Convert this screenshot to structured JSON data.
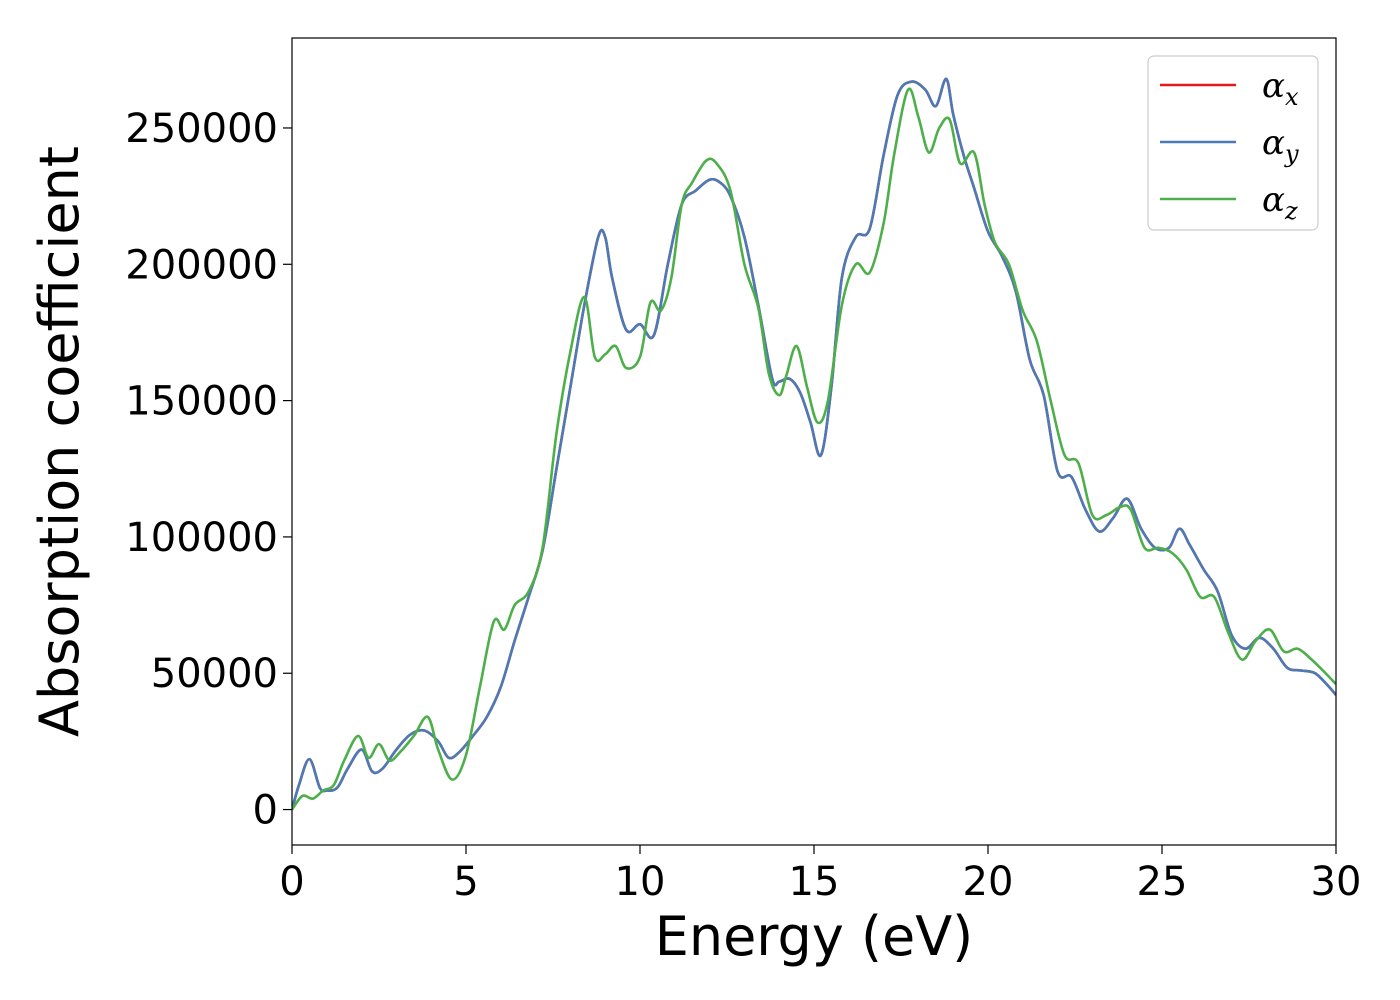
{
  "chart_data": {
    "type": "line",
    "title": "",
    "xlabel": "Energy (eV)",
    "ylabel": "Absorption coefficient",
    "xlim": [
      0,
      30
    ],
    "ylim": [
      -13000,
      283000
    ],
    "xticks": [
      "0",
      "5",
      "10",
      "15",
      "20",
      "25",
      "30"
    ],
    "xtick_values": [
      0,
      5,
      10,
      15,
      20,
      25,
      30
    ],
    "yticks": [
      "0",
      "50000",
      "100000",
      "150000",
      "200000",
      "250000"
    ],
    "ytick_values": [
      0,
      50000,
      100000,
      150000,
      200000,
      250000
    ],
    "grid": false,
    "legend_position": "top-right",
    "series": [
      {
        "name": "αx",
        "legend_base": "α",
        "legend_sub": "x",
        "color": "#e41a1c",
        "x": [
          0,
          0.2,
          0.5,
          0.8,
          1.0,
          1.3,
          1.6,
          2.0,
          2.3,
          2.6,
          3.0,
          3.4,
          3.8,
          4.2,
          4.5,
          4.8,
          5.2,
          5.6,
          6.0,
          6.4,
          6.8,
          7.2,
          7.6,
          8.0,
          8.4,
          8.8,
          9.0,
          9.2,
          9.6,
          10.0,
          10.4,
          10.8,
          11.2,
          11.6,
          12.0,
          12.3,
          12.6,
          13.0,
          13.4,
          13.8,
          14.0,
          14.3,
          14.6,
          14.9,
          15.2,
          15.5,
          15.8,
          16.2,
          16.6,
          17.0,
          17.4,
          17.8,
          18.2,
          18.5,
          18.8,
          19.0,
          19.3,
          19.6,
          20.0,
          20.4,
          20.8,
          21.2,
          21.6,
          22.0,
          22.4,
          22.8,
          23.2,
          23.6,
          24.0,
          24.4,
          24.8,
          25.2,
          25.5,
          25.8,
          26.2,
          26.6,
          27.0,
          27.4,
          27.8,
          28.2,
          28.6,
          29.0,
          29.4,
          29.8,
          30.0
        ],
        "values": [
          0,
          9000,
          18500,
          8000,
          7000,
          8000,
          15000,
          22000,
          14000,
          15000,
          22000,
          27500,
          29000,
          25000,
          19000,
          21000,
          27000,
          34000,
          45000,
          62000,
          78000,
          95000,
          125000,
          155000,
          185000,
          210000,
          210000,
          195000,
          176000,
          178000,
          174000,
          200000,
          222000,
          227000,
          231000,
          230000,
          225000,
          210000,
          185000,
          158000,
          157000,
          158000,
          153000,
          142000,
          130000,
          155000,
          195000,
          210000,
          213000,
          240000,
          262000,
          267000,
          264000,
          258000,
          268000,
          255000,
          240000,
          228000,
          212000,
          203000,
          190000,
          165000,
          152000,
          124000,
          122000,
          110000,
          102000,
          107000,
          114000,
          103000,
          96000,
          96000,
          103000,
          97000,
          88000,
          80000,
          64000,
          59000,
          63000,
          59000,
          52000,
          51000,
          50000,
          45000,
          42000
        ]
      },
      {
        "name": "αy",
        "legend_base": "α",
        "legend_sub": "y",
        "color": "#4a7bb7",
        "x": [
          0,
          0.2,
          0.5,
          0.8,
          1.0,
          1.3,
          1.6,
          2.0,
          2.3,
          2.6,
          3.0,
          3.4,
          3.8,
          4.2,
          4.5,
          4.8,
          5.2,
          5.6,
          6.0,
          6.4,
          6.8,
          7.2,
          7.6,
          8.0,
          8.4,
          8.8,
          9.0,
          9.2,
          9.6,
          10.0,
          10.4,
          10.8,
          11.2,
          11.6,
          12.0,
          12.3,
          12.6,
          13.0,
          13.4,
          13.8,
          14.0,
          14.3,
          14.6,
          14.9,
          15.2,
          15.5,
          15.8,
          16.2,
          16.6,
          17.0,
          17.4,
          17.8,
          18.2,
          18.5,
          18.8,
          19.0,
          19.3,
          19.6,
          20.0,
          20.4,
          20.8,
          21.2,
          21.6,
          22.0,
          22.4,
          22.8,
          23.2,
          23.6,
          24.0,
          24.4,
          24.8,
          25.2,
          25.5,
          25.8,
          26.2,
          26.6,
          27.0,
          27.4,
          27.8,
          28.2,
          28.6,
          29.0,
          29.4,
          29.8,
          30.0
        ],
        "values": [
          0,
          9000,
          18500,
          8000,
          7000,
          8000,
          15000,
          22000,
          14000,
          15000,
          22000,
          27500,
          29000,
          25000,
          19000,
          21000,
          27000,
          34000,
          45000,
          62000,
          78000,
          95000,
          125000,
          155000,
          185000,
          210000,
          210000,
          195000,
          176000,
          178000,
          174000,
          200000,
          222000,
          227000,
          231000,
          230000,
          225000,
          210000,
          185000,
          158000,
          157000,
          158000,
          153000,
          142000,
          130000,
          155000,
          195000,
          210000,
          213000,
          240000,
          262000,
          267000,
          264000,
          258000,
          268000,
          255000,
          240000,
          228000,
          212000,
          203000,
          190000,
          165000,
          152000,
          124000,
          122000,
          110000,
          102000,
          107000,
          114000,
          103000,
          96000,
          96000,
          103000,
          97000,
          88000,
          80000,
          64000,
          59000,
          63000,
          59000,
          52000,
          51000,
          50000,
          45000,
          42000
        ]
      },
      {
        "name": "αz",
        "legend_base": "α",
        "legend_sub": "z",
        "color": "#4daf4a",
        "x": [
          0,
          0.3,
          0.6,
          0.9,
          1.2,
          1.5,
          1.9,
          2.2,
          2.5,
          2.8,
          3.1,
          3.5,
          3.9,
          4.2,
          4.6,
          5.0,
          5.4,
          5.8,
          6.1,
          6.4,
          6.8,
          7.2,
          7.6,
          8.0,
          8.4,
          8.7,
          9.0,
          9.3,
          9.6,
          10.0,
          10.3,
          10.6,
          10.9,
          11.2,
          11.5,
          11.9,
          12.2,
          12.6,
          13.0,
          13.4,
          13.7,
          14.0,
          14.2,
          14.5,
          14.8,
          15.1,
          15.4,
          15.8,
          16.2,
          16.6,
          17.0,
          17.3,
          17.7,
          18.0,
          18.3,
          18.6,
          18.9,
          19.2,
          19.6,
          19.9,
          20.2,
          20.6,
          21.0,
          21.4,
          21.8,
          22.2,
          22.6,
          23.0,
          23.4,
          23.8,
          24.1,
          24.5,
          24.9,
          25.3,
          25.7,
          26.1,
          26.5,
          26.9,
          27.3,
          27.7,
          28.1,
          28.5,
          28.9,
          29.3,
          29.7,
          30.0
        ],
        "values": [
          0,
          5000,
          4000,
          7000,
          9000,
          18000,
          27000,
          19000,
          24000,
          18000,
          21000,
          27000,
          34000,
          22000,
          11000,
          20000,
          45000,
          69000,
          66000,
          75000,
          80000,
          96000,
          138000,
          168000,
          188000,
          166000,
          167000,
          170000,
          162000,
          166000,
          186000,
          183000,
          195000,
          222000,
          230000,
          238000,
          237000,
          227000,
          200000,
          184000,
          160000,
          152000,
          159000,
          170000,
          155000,
          142000,
          150000,
          185000,
          200000,
          197000,
          215000,
          240000,
          264000,
          254000,
          241000,
          250000,
          253000,
          237000,
          241000,
          222000,
          208000,
          200000,
          183000,
          172000,
          150000,
          130000,
          127000,
          108000,
          108000,
          111000,
          110000,
          96000,
          96000,
          94000,
          88000,
          78000,
          78000,
          65000,
          55000,
          62000,
          66000,
          58000,
          59000,
          55000,
          50000,
          46000
        ]
      }
    ]
  }
}
